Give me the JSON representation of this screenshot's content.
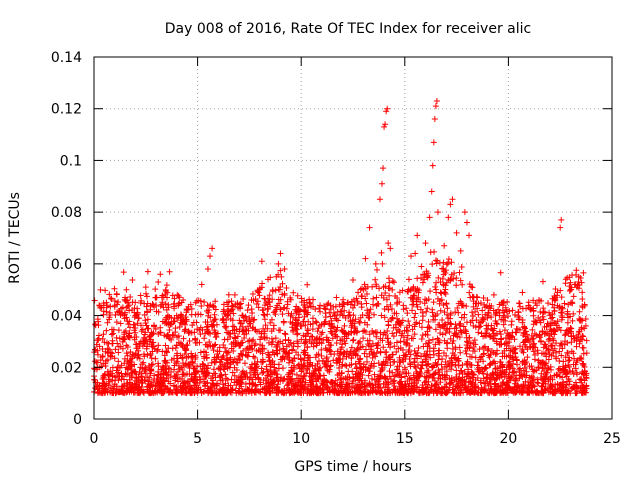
{
  "chart_data": {
    "type": "scatter",
    "title": "Day 008 of 2016, Rate Of TEC Index for receiver alic",
    "xlabel": "GPS time / hours",
    "ylabel": "ROTI / TECUs",
    "xlim": [
      0,
      25
    ],
    "ylim": [
      0,
      0.14
    ],
    "xticks": [
      0,
      5,
      10,
      15,
      20,
      25
    ],
    "xtick_labels": [
      "0",
      "5",
      "10",
      "15",
      "20",
      "25"
    ],
    "yticks": [
      0,
      0.02,
      0.04,
      0.06,
      0.08,
      0.1,
      0.12,
      0.14
    ],
    "ytick_labels": [
      "0",
      "0.02",
      "0.04",
      "0.06",
      "0.08",
      "0.1",
      "0.12",
      "0.14"
    ],
    "grid": true,
    "marker": "+",
    "color": "#ff0000",
    "series": [
      {
        "name": "ROTI",
        "baseline_band": [
          0.006,
          0.03
        ],
        "points": [
          [
            0.3,
            0.043
          ],
          [
            0.6,
            0.045
          ],
          [
            1.0,
            0.044
          ],
          [
            1.5,
            0.047
          ],
          [
            2.0,
            0.04
          ],
          [
            2.5,
            0.051
          ],
          [
            2.6,
            0.057
          ],
          [
            3.1,
            0.053
          ],
          [
            3.2,
            0.056
          ],
          [
            3.5,
            0.037
          ],
          [
            4.3,
            0.046
          ],
          [
            5.2,
            0.052
          ],
          [
            5.5,
            0.058
          ],
          [
            5.6,
            0.063
          ],
          [
            5.7,
            0.066
          ],
          [
            6.8,
            0.048
          ],
          [
            7.6,
            0.046
          ],
          [
            8.1,
            0.061
          ],
          [
            8.4,
            0.054
          ],
          [
            8.8,
            0.055
          ],
          [
            8.9,
            0.06
          ],
          [
            9.0,
            0.064
          ],
          [
            9.2,
            0.058
          ],
          [
            10.9,
            0.036
          ],
          [
            11.7,
            0.047
          ],
          [
            12.5,
            0.043
          ],
          [
            13.1,
            0.062
          ],
          [
            13.3,
            0.074
          ],
          [
            13.6,
            0.06
          ],
          [
            13.8,
            0.085
          ],
          [
            13.9,
            0.091
          ],
          [
            13.95,
            0.097
          ],
          [
            14.0,
            0.113
          ],
          [
            14.05,
            0.114
          ],
          [
            14.1,
            0.119
          ],
          [
            14.15,
            0.12
          ],
          [
            14.2,
            0.068
          ],
          [
            14.3,
            0.066
          ],
          [
            15.2,
            0.054
          ],
          [
            15.3,
            0.063
          ],
          [
            15.5,
            0.064
          ],
          [
            15.6,
            0.071
          ],
          [
            15.8,
            0.059
          ],
          [
            16.0,
            0.068
          ],
          [
            16.2,
            0.078
          ],
          [
            16.3,
            0.088
          ],
          [
            16.35,
            0.098
          ],
          [
            16.4,
            0.107
          ],
          [
            16.45,
            0.116
          ],
          [
            16.5,
            0.121
          ],
          [
            16.55,
            0.123
          ],
          [
            16.6,
            0.08
          ],
          [
            16.9,
            0.067
          ],
          [
            17.1,
            0.078
          ],
          [
            17.2,
            0.083
          ],
          [
            17.3,
            0.085
          ],
          [
            17.5,
            0.072
          ],
          [
            17.7,
            0.065
          ],
          [
            17.9,
            0.08
          ],
          [
            18.0,
            0.076
          ],
          [
            18.1,
            0.071
          ],
          [
            18.5,
            0.047
          ],
          [
            19.3,
            0.048
          ],
          [
            20.2,
            0.042
          ],
          [
            20.8,
            0.035
          ],
          [
            21.5,
            0.032
          ],
          [
            22.2,
            0.034
          ],
          [
            22.5,
            0.074
          ],
          [
            22.55,
            0.077
          ],
          [
            23.0,
            0.05
          ],
          [
            23.2,
            0.052
          ],
          [
            23.4,
            0.055
          ]
        ]
      }
    ]
  }
}
